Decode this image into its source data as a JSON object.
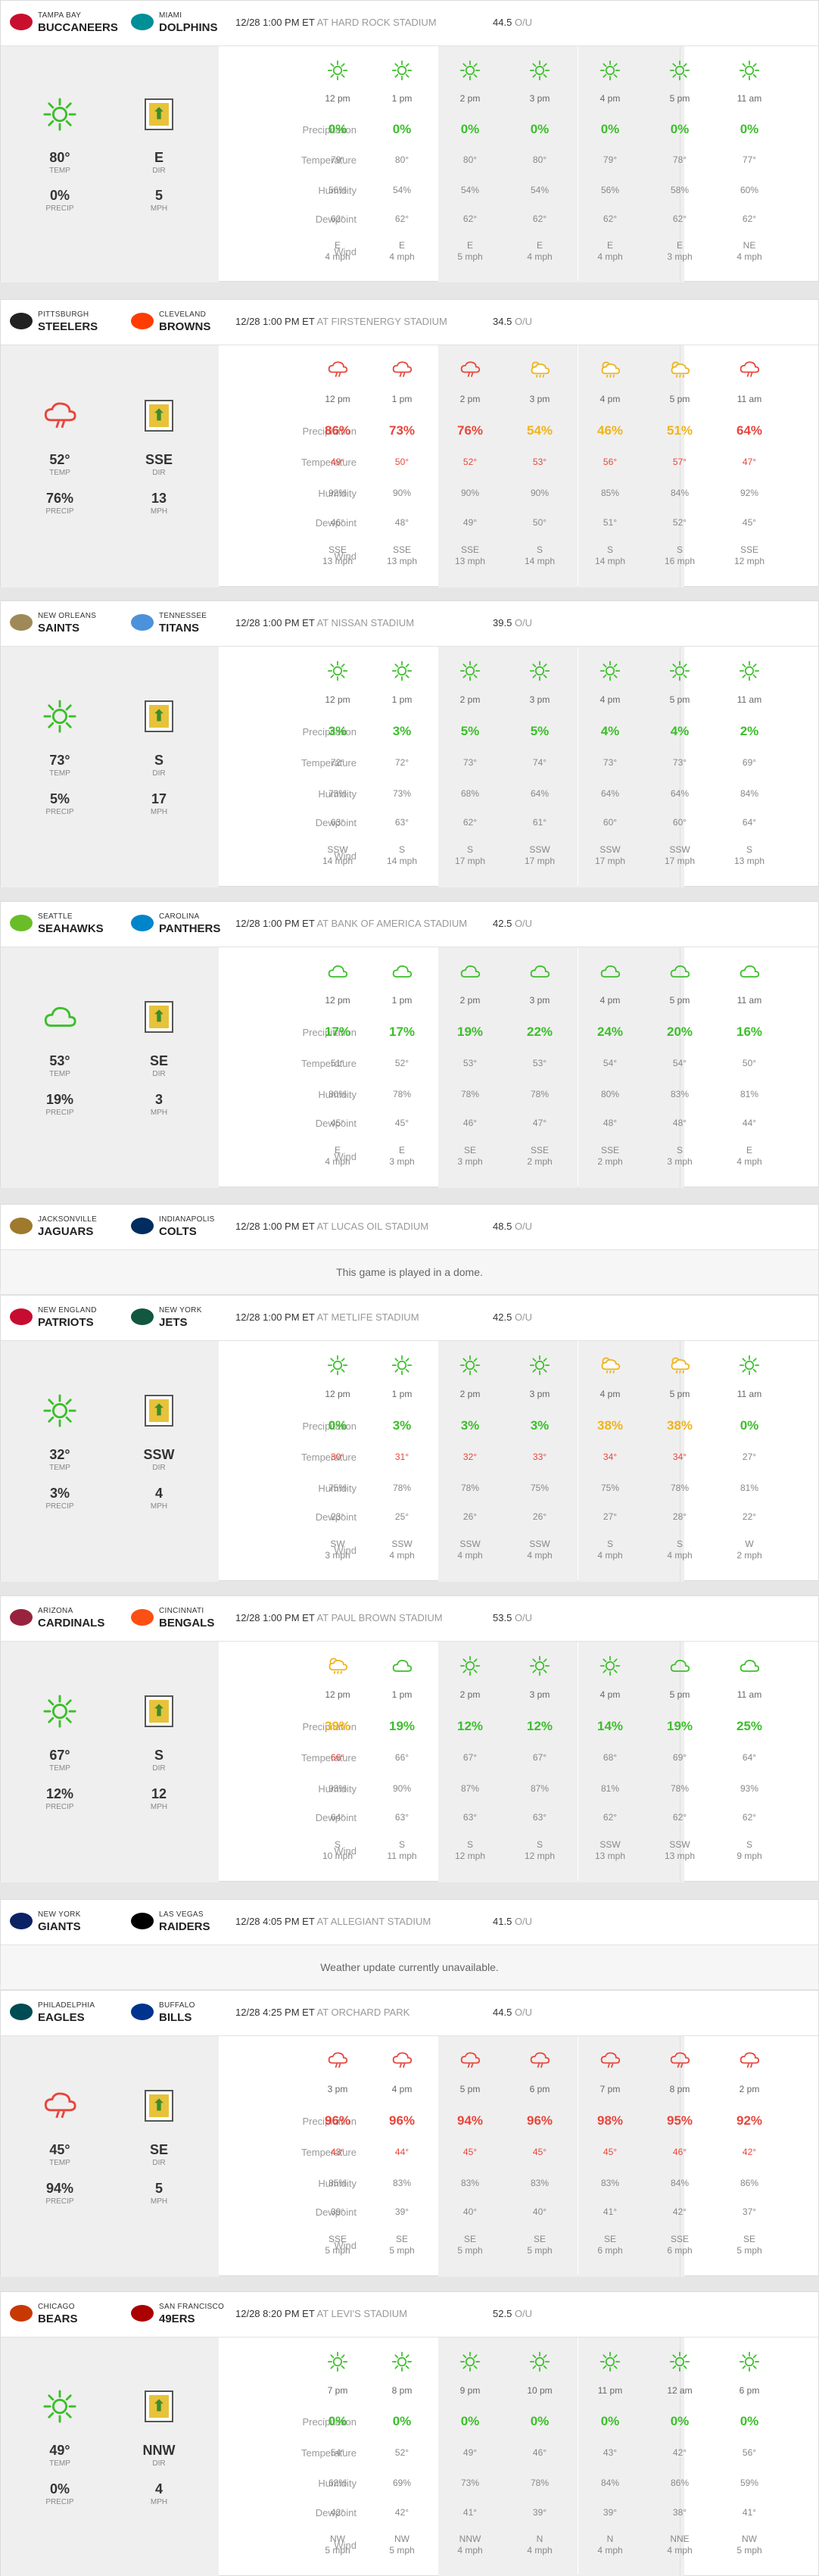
{
  "colors": {
    "green": "#3bbf2a",
    "yellow": "#f0b31c",
    "red": "#e8453c",
    "grey": "#888888"
  },
  "icons": {
    "sun": "sun-icon",
    "cloud": "cloud-icon",
    "rain": "rain-cloud-icon",
    "storm": "storm-cloud-icon",
    "suncloud": "sun-cloud-icon",
    "wind": "wind-direction-icon"
  },
  "labels": {
    "temp": "TEMP",
    "precip": "PRECIP",
    "dir": "DIR",
    "mph": "MPH",
    "ou": "O/U",
    "precipitation": "Precipitation",
    "temperature": "Temperature",
    "humidity": "Humidity",
    "dewpoint": "Dewpoint",
    "wind": "Wind"
  },
  "games": [
    {
      "away_city": "TAMPA BAY",
      "away_name": "BUCCANEERS",
      "home_city": "MIAMI",
      "home_name": "DOLPHINS",
      "datetime": "12/28 1:00 PM ET",
      "stadium": "AT HARD ROCK STADIUM",
      "ou": "44.5",
      "current": {
        "icon": "sun",
        "temp": "80°",
        "precip": "0%",
        "dir": "E",
        "mph": "5"
      },
      "hours": [
        {
          "time": "12 pm",
          "icon": "sun",
          "precip": "0%",
          "pc": "green",
          "temp": "79°",
          "hum": "56%",
          "dew": "62°",
          "wind_dir": "E",
          "wind_mph": "4 mph"
        },
        {
          "time": "1 pm",
          "icon": "sun",
          "precip": "0%",
          "pc": "green",
          "temp": "80°",
          "hum": "54%",
          "dew": "62°",
          "wind_dir": "E",
          "wind_mph": "4 mph"
        },
        {
          "time": "2 pm",
          "icon": "sun",
          "precip": "0%",
          "pc": "green",
          "temp": "80°",
          "hum": "54%",
          "dew": "62°",
          "wind_dir": "E",
          "wind_mph": "5 mph"
        },
        {
          "time": "3 pm",
          "icon": "sun",
          "precip": "0%",
          "pc": "green",
          "temp": "80°",
          "hum": "54%",
          "dew": "62°",
          "wind_dir": "E",
          "wind_mph": "4 mph"
        },
        {
          "time": "4 pm",
          "icon": "sun",
          "precip": "0%",
          "pc": "green",
          "temp": "79°",
          "hum": "56%",
          "dew": "62°",
          "wind_dir": "E",
          "wind_mph": "4 mph"
        },
        {
          "time": "5 pm",
          "icon": "sun",
          "precip": "0%",
          "pc": "green",
          "temp": "78°",
          "hum": "58%",
          "dew": "62°",
          "wind_dir": "E",
          "wind_mph": "3 mph"
        },
        {
          "time": "11 am",
          "icon": "sun",
          "precip": "0%",
          "pc": "green",
          "temp": "77°",
          "hum": "60%",
          "dew": "62°",
          "wind_dir": "NE",
          "wind_mph": "4 mph"
        }
      ]
    },
    {
      "away_city": "PITTSBURGH",
      "away_name": "STEELERS",
      "home_city": "CLEVELAND",
      "home_name": "BROWNS",
      "datetime": "12/28 1:00 PM ET",
      "stadium": "AT FIRSTENERGY STADIUM",
      "ou": "34.5",
      "current": {
        "icon": "rain",
        "temp": "52°",
        "precip": "76%",
        "dir": "SSE",
        "mph": "13"
      },
      "hours": [
        {
          "time": "12 pm",
          "icon": "rain",
          "precip": "86%",
          "pc": "red",
          "temp": "49°",
          "hum": "92%",
          "dew": "46°",
          "wind_dir": "SSE",
          "wind_mph": "13 mph"
        },
        {
          "time": "1 pm",
          "icon": "rain",
          "precip": "73%",
          "pc": "red",
          "temp": "50°",
          "hum": "90%",
          "dew": "48°",
          "wind_dir": "SSE",
          "wind_mph": "13 mph"
        },
        {
          "time": "2 pm",
          "icon": "rain",
          "precip": "76%",
          "pc": "red",
          "temp": "52°",
          "hum": "90%",
          "dew": "49°",
          "wind_dir": "SSE",
          "wind_mph": "13 mph"
        },
        {
          "time": "3 pm",
          "icon": "storm",
          "precip": "54%",
          "pc": "yellow",
          "temp": "53°",
          "hum": "90%",
          "dew": "50°",
          "wind_dir": "S",
          "wind_mph": "14 mph"
        },
        {
          "time": "4 pm",
          "icon": "storm",
          "precip": "46%",
          "pc": "yellow",
          "temp": "56°",
          "hum": "85%",
          "dew": "51°",
          "wind_dir": "S",
          "wind_mph": "14 mph"
        },
        {
          "time": "5 pm",
          "icon": "storm",
          "precip": "51%",
          "pc": "yellow",
          "temp": "57°",
          "hum": "84%",
          "dew": "52°",
          "wind_dir": "S",
          "wind_mph": "16 mph"
        },
        {
          "time": "11 am",
          "icon": "rain",
          "precip": "64%",
          "pc": "red",
          "temp": "47°",
          "hum": "92%",
          "dew": "45°",
          "wind_dir": "SSE",
          "wind_mph": "12 mph"
        }
      ]
    },
    {
      "away_city": "NEW ORLEANS",
      "away_name": "SAINTS",
      "home_city": "TENNESSEE",
      "home_name": "TITANS",
      "datetime": "12/28 1:00 PM ET",
      "stadium": "AT NISSAN STADIUM",
      "ou": "39.5",
      "current": {
        "icon": "sun",
        "temp": "73°",
        "precip": "5%",
        "dir": "S",
        "mph": "17"
      },
      "hours": [
        {
          "time": "12 pm",
          "icon": "sun",
          "precip": "3%",
          "pc": "green",
          "temp": "72°",
          "hum": "73%",
          "dew": "63°",
          "wind_dir": "SSW",
          "wind_mph": "14 mph"
        },
        {
          "time": "1 pm",
          "icon": "sun",
          "precip": "3%",
          "pc": "green",
          "temp": "72°",
          "hum": "73%",
          "dew": "63°",
          "wind_dir": "S",
          "wind_mph": "14 mph"
        },
        {
          "time": "2 pm",
          "icon": "sun",
          "precip": "5%",
          "pc": "green",
          "temp": "73°",
          "hum": "68%",
          "dew": "62°",
          "wind_dir": "S",
          "wind_mph": "17 mph"
        },
        {
          "time": "3 pm",
          "icon": "sun",
          "precip": "5%",
          "pc": "green",
          "temp": "74°",
          "hum": "64%",
          "dew": "61°",
          "wind_dir": "SSW",
          "wind_mph": "17 mph"
        },
        {
          "time": "4 pm",
          "icon": "sun",
          "precip": "4%",
          "pc": "green",
          "temp": "73°",
          "hum": "64%",
          "dew": "60°",
          "wind_dir": "SSW",
          "wind_mph": "17 mph"
        },
        {
          "time": "5 pm",
          "icon": "sun",
          "precip": "4%",
          "pc": "green",
          "temp": "73°",
          "hum": "64%",
          "dew": "60°",
          "wind_dir": "SSW",
          "wind_mph": "17 mph"
        },
        {
          "time": "11 am",
          "icon": "sun",
          "precip": "2%",
          "pc": "green",
          "temp": "69°",
          "hum": "84%",
          "dew": "64°",
          "wind_dir": "S",
          "wind_mph": "13 mph"
        }
      ]
    },
    {
      "away_city": "SEATTLE",
      "away_name": "SEAHAWKS",
      "home_city": "CAROLINA",
      "home_name": "PANTHERS",
      "datetime": "12/28 1:00 PM ET",
      "stadium": "AT BANK OF AMERICA STADIUM",
      "ou": "42.5",
      "current": {
        "icon": "cloud",
        "temp": "53°",
        "precip": "19%",
        "dir": "SE",
        "mph": "3"
      },
      "hours": [
        {
          "time": "12 pm",
          "icon": "cloud",
          "precip": "17%",
          "pc": "green",
          "temp": "51°",
          "hum": "80%",
          "dew": "45°",
          "wind_dir": "E",
          "wind_mph": "4 mph"
        },
        {
          "time": "1 pm",
          "icon": "cloud",
          "precip": "17%",
          "pc": "green",
          "temp": "52°",
          "hum": "78%",
          "dew": "45°",
          "wind_dir": "E",
          "wind_mph": "3 mph"
        },
        {
          "time": "2 pm",
          "icon": "cloud",
          "precip": "19%",
          "pc": "green",
          "temp": "53°",
          "hum": "78%",
          "dew": "46°",
          "wind_dir": "SE",
          "wind_mph": "3 mph"
        },
        {
          "time": "3 pm",
          "icon": "cloud",
          "precip": "22%",
          "pc": "green",
          "temp": "53°",
          "hum": "78%",
          "dew": "47°",
          "wind_dir": "SSE",
          "wind_mph": "2 mph"
        },
        {
          "time": "4 pm",
          "icon": "cloud",
          "precip": "24%",
          "pc": "green",
          "temp": "54°",
          "hum": "80%",
          "dew": "48°",
          "wind_dir": "SSE",
          "wind_mph": "2 mph"
        },
        {
          "time": "5 pm",
          "icon": "cloud",
          "precip": "20%",
          "pc": "green",
          "temp": "54°",
          "hum": "83%",
          "dew": "48°",
          "wind_dir": "S",
          "wind_mph": "3 mph"
        },
        {
          "time": "11 am",
          "icon": "cloud",
          "precip": "16%",
          "pc": "green",
          "temp": "50°",
          "hum": "81%",
          "dew": "44°",
          "wind_dir": "E",
          "wind_mph": "4 mph"
        }
      ]
    },
    {
      "away_city": "JACKSONVILLE",
      "away_name": "JAGUARS",
      "home_city": "INDIANAPOLIS",
      "home_name": "COLTS",
      "datetime": "12/28 1:00 PM ET",
      "stadium": "AT LUCAS OIL STADIUM",
      "ou": "48.5",
      "message": "This game is played in a dome."
    },
    {
      "away_city": "NEW ENGLAND",
      "away_name": "PATRIOTS",
      "home_city": "NEW YORK",
      "home_name": "JETS",
      "datetime": "12/28 1:00 PM ET",
      "stadium": "AT METLIFE STADIUM",
      "ou": "42.5",
      "current": {
        "icon": "sun",
        "temp": "32°",
        "precip": "3%",
        "dir": "SSW",
        "mph": "4"
      },
      "hours": [
        {
          "time": "12 pm",
          "icon": "sun",
          "precip": "0%",
          "pc": "green",
          "temp": "30°",
          "hum": "75%",
          "dew": "23°",
          "wind_dir": "SW",
          "wind_mph": "3 mph"
        },
        {
          "time": "1 pm",
          "icon": "sun",
          "precip": "3%",
          "pc": "green",
          "temp": "31°",
          "hum": "78%",
          "dew": "25°",
          "wind_dir": "SSW",
          "wind_mph": "4 mph"
        },
        {
          "time": "2 pm",
          "icon": "sun",
          "precip": "3%",
          "pc": "green",
          "temp": "32°",
          "hum": "78%",
          "dew": "26°",
          "wind_dir": "SSW",
          "wind_mph": "4 mph"
        },
        {
          "time": "3 pm",
          "icon": "sun",
          "precip": "3%",
          "pc": "green",
          "temp": "33°",
          "hum": "75%",
          "dew": "26°",
          "wind_dir": "SSW",
          "wind_mph": "4 mph"
        },
        {
          "time": "4 pm",
          "icon": "snow",
          "precip": "38%",
          "pc": "yellow",
          "temp": "34°",
          "hum": "75%",
          "dew": "27°",
          "wind_dir": "S",
          "wind_mph": "4 mph"
        },
        {
          "time": "5 pm",
          "icon": "snow",
          "precip": "38%",
          "pc": "yellow",
          "temp": "34°",
          "hum": "78%",
          "dew": "28°",
          "wind_dir": "S",
          "wind_mph": "4 mph"
        },
        {
          "time": "11 am",
          "icon": "sun",
          "precip": "0%",
          "pc": "green",
          "temp": "27°",
          "hum": "81%",
          "dew": "22°",
          "wind_dir": "W",
          "wind_mph": "2 mph"
        }
      ]
    },
    {
      "away_city": "ARIZONA",
      "away_name": "CARDINALS",
      "home_city": "CINCINNATI",
      "home_name": "BENGALS",
      "datetime": "12/28 1:00 PM ET",
      "stadium": "AT PAUL BROWN STADIUM",
      "ou": "53.5",
      "current": {
        "icon": "sun",
        "temp": "67°",
        "precip": "12%",
        "dir": "S",
        "mph": "12"
      },
      "hours": [
        {
          "time": "12 pm",
          "icon": "storm",
          "precip": "39%",
          "pc": "yellow",
          "temp": "66°",
          "hum": "93%",
          "dew": "64°",
          "wind_dir": "S",
          "wind_mph": "10 mph"
        },
        {
          "time": "1 pm",
          "icon": "cloud",
          "precip": "19%",
          "pc": "green",
          "temp": "66°",
          "hum": "90%",
          "dew": "63°",
          "wind_dir": "S",
          "wind_mph": "11 mph"
        },
        {
          "time": "2 pm",
          "icon": "sun",
          "precip": "12%",
          "pc": "green",
          "temp": "67°",
          "hum": "87%",
          "dew": "63°",
          "wind_dir": "S",
          "wind_mph": "12 mph"
        },
        {
          "time": "3 pm",
          "icon": "sun",
          "precip": "12%",
          "pc": "green",
          "temp": "67°",
          "hum": "87%",
          "dew": "63°",
          "wind_dir": "S",
          "wind_mph": "12 mph"
        },
        {
          "time": "4 pm",
          "icon": "sun",
          "precip": "14%",
          "pc": "green",
          "temp": "68°",
          "hum": "81%",
          "dew": "62°",
          "wind_dir": "SSW",
          "wind_mph": "13 mph"
        },
        {
          "time": "5 pm",
          "icon": "cloud",
          "precip": "19%",
          "pc": "green",
          "temp": "69°",
          "hum": "78%",
          "dew": "62°",
          "wind_dir": "SSW",
          "wind_mph": "13 mph"
        },
        {
          "time": "11 am",
          "icon": "cloud",
          "precip": "25%",
          "pc": "green",
          "temp": "64°",
          "hum": "93%",
          "dew": "62°",
          "wind_dir": "S",
          "wind_mph": "9 mph"
        }
      ]
    },
    {
      "away_city": "NEW YORK",
      "away_name": "GIANTS",
      "home_city": "LAS VEGAS",
      "home_name": "RAIDERS",
      "datetime": "12/28 4:05 PM ET",
      "stadium": "AT ALLEGIANT STADIUM",
      "ou": "41.5",
      "message": "Weather update currently unavailable."
    },
    {
      "away_city": "PHILADELPHIA",
      "away_name": "EAGLES",
      "home_city": "BUFFALO",
      "home_name": "BILLS",
      "datetime": "12/28 4:25 PM ET",
      "stadium": "AT ORCHARD PARK",
      "ou": "44.5",
      "current": {
        "icon": "rain",
        "temp": "45°",
        "precip": "94%",
        "dir": "SE",
        "mph": "5"
      },
      "hours": [
        {
          "time": "3 pm",
          "icon": "rain",
          "precip": "96%",
          "pc": "red",
          "temp": "43°",
          "hum": "85%",
          "dew": "39°",
          "wind_dir": "SSE",
          "wind_mph": "5 mph"
        },
        {
          "time": "4 pm",
          "icon": "rain",
          "precip": "96%",
          "pc": "red",
          "temp": "44°",
          "hum": "83%",
          "dew": "39°",
          "wind_dir": "SE",
          "wind_mph": "5 mph"
        },
        {
          "time": "5 pm",
          "icon": "rain",
          "precip": "94%",
          "pc": "red",
          "temp": "45°",
          "hum": "83%",
          "dew": "40°",
          "wind_dir": "SE",
          "wind_mph": "5 mph"
        },
        {
          "time": "6 pm",
          "icon": "rain",
          "precip": "96%",
          "pc": "red",
          "temp": "45°",
          "hum": "83%",
          "dew": "40°",
          "wind_dir": "SE",
          "wind_mph": "5 mph"
        },
        {
          "time": "7 pm",
          "icon": "rain",
          "precip": "98%",
          "pc": "red",
          "temp": "45°",
          "hum": "83%",
          "dew": "41°",
          "wind_dir": "SE",
          "wind_mph": "6 mph"
        },
        {
          "time": "8 pm",
          "icon": "rain",
          "precip": "95%",
          "pc": "red",
          "temp": "46°",
          "hum": "84%",
          "dew": "42°",
          "wind_dir": "SSE",
          "wind_mph": "6 mph"
        },
        {
          "time": "2 pm",
          "icon": "rain",
          "precip": "92%",
          "pc": "red",
          "temp": "42°",
          "hum": "86%",
          "dew": "37°",
          "wind_dir": "SE",
          "wind_mph": "5 mph"
        }
      ]
    },
    {
      "away_city": "CHICAGO",
      "away_name": "BEARS",
      "home_city": "SAN FRANCISCO",
      "home_name": "49ERS",
      "datetime": "12/28 8:20 PM ET",
      "stadium": "AT LEVI'S STADIUM",
      "ou": "52.5",
      "current": {
        "icon": "sun",
        "temp": "49°",
        "precip": "0%",
        "dir": "NNW",
        "mph": "4"
      },
      "hours": [
        {
          "time": "7 pm",
          "icon": "sun",
          "precip": "0%",
          "pc": "green",
          "temp": "54°",
          "hum": "62%",
          "dew": "42°",
          "wind_dir": "NW",
          "wind_mph": "5 mph"
        },
        {
          "time": "8 pm",
          "icon": "sun",
          "precip": "0%",
          "pc": "green",
          "temp": "52°",
          "hum": "69%",
          "dew": "42°",
          "wind_dir": "NW",
          "wind_mph": "5 mph"
        },
        {
          "time": "9 pm",
          "icon": "sun",
          "precip": "0%",
          "pc": "green",
          "temp": "49°",
          "hum": "73%",
          "dew": "41°",
          "wind_dir": "NNW",
          "wind_mph": "4 mph"
        },
        {
          "time": "10 pm",
          "icon": "sun",
          "precip": "0%",
          "pc": "green",
          "temp": "46°",
          "hum": "78%",
          "dew": "39°",
          "wind_dir": "N",
          "wind_mph": "4 mph"
        },
        {
          "time": "11 pm",
          "icon": "sun",
          "precip": "0%",
          "pc": "green",
          "temp": "43°",
          "hum": "84%",
          "dew": "39°",
          "wind_dir": "N",
          "wind_mph": "4 mph"
        },
        {
          "time": "12 am",
          "icon": "sun",
          "precip": "0%",
          "pc": "green",
          "temp": "42°",
          "hum": "86%",
          "dew": "38°",
          "wind_dir": "NNE",
          "wind_mph": "4 mph"
        },
        {
          "time": "6 pm",
          "icon": "sun",
          "precip": "0%",
          "pc": "green",
          "temp": "56°",
          "hum": "59%",
          "dew": "41°",
          "wind_dir": "NW",
          "wind_mph": "5 mph"
        }
      ]
    }
  ]
}
